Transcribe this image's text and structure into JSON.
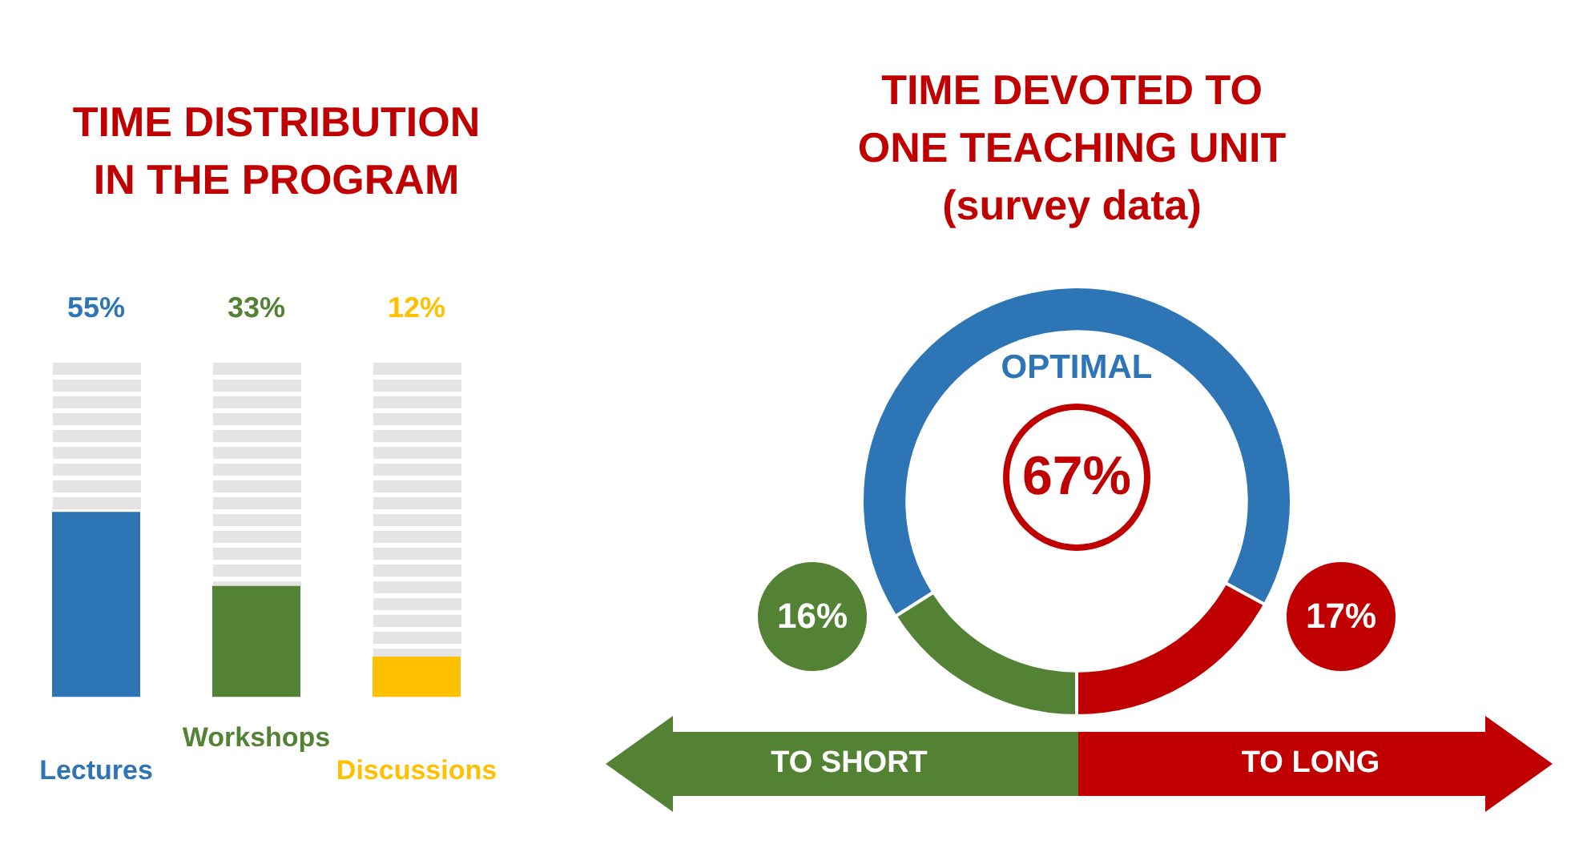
{
  "chart_data": [
    {
      "type": "bar",
      "title": "TIME DISTRIBUTION IN THE PROGRAM",
      "categories": [
        "Lectures",
        "Workshops",
        "Discussions"
      ],
      "values": [
        55,
        33,
        12
      ],
      "colors": [
        "#2e75b6",
        "#548235",
        "#ffc000"
      ],
      "value_labels": [
        "55%",
        "33%",
        "12%"
      ],
      "ylim": [
        0,
        100
      ],
      "tick_labels": "x"
    },
    {
      "type": "donut",
      "title": "TIME DEVOTED TO ONE TEACHING UNIT",
      "subtitle": "(survey data)",
      "categories": [
        "TO SHORT",
        "OPTIMAL",
        "TO LONG"
      ],
      "values": [
        16,
        67,
        17
      ],
      "colors": [
        "#548235",
        "#2e75b6",
        "#c00000"
      ],
      "value_labels": [
        "16%",
        "67%",
        "17%"
      ]
    }
  ]
}
